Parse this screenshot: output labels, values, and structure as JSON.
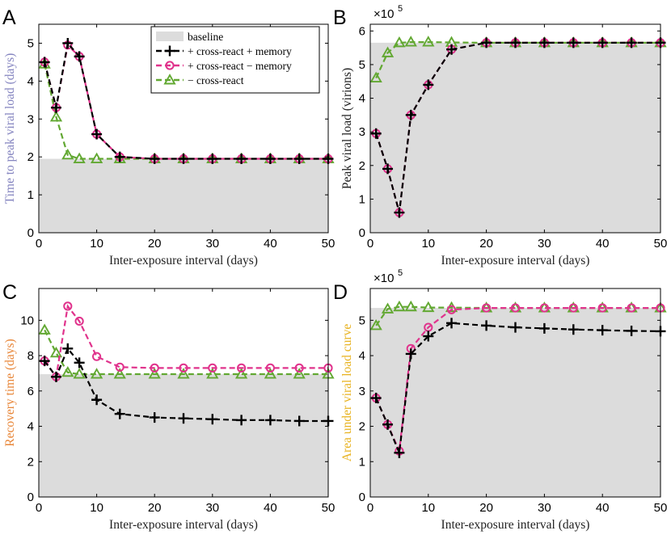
{
  "colors": {
    "memory": "#000000",
    "no_memory": "#e0338c",
    "no_cross": "#62a832",
    "baseline": "#dcdcdc",
    "ylabel_A": "#8585c0",
    "ylabel_C": "#e8873a",
    "ylabel_D": "#e8b321"
  },
  "legend": {
    "baseline": "baseline",
    "memory": "+ cross-react + memory",
    "no_memory": "+ cross-react − memory",
    "no_cross": "− cross-react"
  },
  "chart_data": [
    {
      "panel": "A",
      "type": "line",
      "xlabel": "Inter-exposure interval (days)",
      "ylabel": "Time to peak viral load (days)",
      "xlim": [
        0,
        50
      ],
      "ylim": [
        0,
        5.5
      ],
      "xticks": [
        0,
        10,
        20,
        30,
        40,
        50
      ],
      "yticks": [
        0,
        1,
        2,
        3,
        4,
        5
      ],
      "baseline": 1.95,
      "series": [
        {
          "name": "+ cross-react + memory",
          "key": "memory",
          "marker": "plus",
          "x": [
            1,
            3,
            5,
            7,
            10,
            14,
            20,
            25,
            30,
            35,
            40,
            45,
            50
          ],
          "y": [
            4.5,
            3.3,
            5.0,
            4.65,
            2.6,
            2.0,
            1.95,
            1.95,
            1.95,
            1.95,
            1.95,
            1.95,
            1.95
          ]
        },
        {
          "name": "+ cross-react − memory",
          "key": "no_memory",
          "marker": "circle",
          "x": [
            1,
            3,
            5,
            7,
            10,
            14,
            20,
            25,
            30,
            35,
            40,
            45,
            50
          ],
          "y": [
            4.5,
            3.3,
            4.95,
            4.65,
            2.6,
            2.0,
            1.95,
            1.95,
            1.95,
            1.95,
            1.95,
            1.95,
            1.95
          ]
        },
        {
          "name": "− cross-react",
          "key": "no_cross",
          "marker": "triangle",
          "x": [
            1,
            3,
            5,
            7,
            10,
            14,
            20,
            25,
            30,
            35,
            40,
            45,
            50
          ],
          "y": [
            4.45,
            3.05,
            2.05,
            1.95,
            1.95,
            1.95,
            1.95,
            1.95,
            1.95,
            1.95,
            1.95,
            1.95,
            1.95
          ]
        }
      ]
    },
    {
      "panel": "B",
      "type": "line",
      "xlabel": "Inter-exposure interval (days)",
      "ylabel": "Peak viral load (virions)",
      "scale_base": "×10",
      "scale_exp": "5",
      "xlim": [
        0,
        50
      ],
      "ylim": [
        0,
        6.2
      ],
      "xticks": [
        0,
        10,
        20,
        30,
        40,
        50
      ],
      "yticks": [
        0,
        1,
        2,
        3,
        4,
        5,
        6
      ],
      "baseline": 5.65,
      "series": [
        {
          "name": "+ cross-react + memory",
          "key": "memory",
          "marker": "plus",
          "x": [
            1,
            3,
            5,
            7,
            10,
            14,
            20,
            25,
            30,
            35,
            40,
            45,
            50
          ],
          "y": [
            2.95,
            1.9,
            0.6,
            3.5,
            4.4,
            5.45,
            5.65,
            5.65,
            5.65,
            5.65,
            5.65,
            5.65,
            5.65
          ]
        },
        {
          "name": "+ cross-react − memory",
          "key": "no_memory",
          "marker": "circle",
          "x": [
            1,
            3,
            5,
            7,
            10,
            14,
            20,
            25,
            30,
            35,
            40,
            45,
            50
          ],
          "y": [
            2.95,
            1.9,
            0.6,
            3.5,
            4.4,
            5.45,
            5.65,
            5.65,
            5.65,
            5.65,
            5.65,
            5.65,
            5.65
          ]
        },
        {
          "name": "− cross-react",
          "key": "no_cross",
          "marker": "triangle",
          "x": [
            1,
            3,
            5,
            7,
            10,
            14,
            20,
            25,
            30,
            35,
            40,
            45,
            50
          ],
          "y": [
            4.6,
            5.35,
            5.65,
            5.67,
            5.67,
            5.66,
            5.65,
            5.65,
            5.65,
            5.65,
            5.65,
            5.65,
            5.65
          ]
        }
      ]
    },
    {
      "panel": "C",
      "type": "line",
      "xlabel": "Inter-exposure interval (days)",
      "ylabel": "Recovery time (days)",
      "xlim": [
        0,
        50
      ],
      "ylim": [
        0,
        11.8
      ],
      "xticks": [
        0,
        10,
        20,
        30,
        40,
        50
      ],
      "yticks": [
        0,
        2,
        4,
        6,
        8,
        10
      ],
      "baseline": 6.95,
      "series": [
        {
          "name": "+ cross-react + memory",
          "key": "memory",
          "marker": "plus",
          "x": [
            1,
            3,
            5,
            7,
            10,
            14,
            20,
            25,
            30,
            35,
            40,
            45,
            50
          ],
          "y": [
            7.7,
            6.8,
            8.4,
            7.6,
            5.5,
            4.7,
            4.5,
            4.45,
            4.4,
            4.35,
            4.35,
            4.3,
            4.3
          ]
        },
        {
          "name": "+ cross-react − memory",
          "key": "no_memory",
          "marker": "circle",
          "x": [
            1,
            3,
            5,
            7,
            10,
            14,
            20,
            25,
            30,
            35,
            40,
            45,
            50
          ],
          "y": [
            7.7,
            6.8,
            10.8,
            9.95,
            7.95,
            7.35,
            7.3,
            7.3,
            7.3,
            7.3,
            7.3,
            7.3,
            7.3
          ]
        },
        {
          "name": "− cross-react",
          "key": "no_cross",
          "marker": "triangle",
          "x": [
            1,
            3,
            5,
            7,
            10,
            14,
            20,
            25,
            30,
            35,
            40,
            45,
            50
          ],
          "y": [
            9.45,
            8.15,
            7.05,
            6.95,
            6.95,
            6.95,
            6.95,
            6.95,
            6.95,
            6.95,
            6.95,
            6.95,
            6.95
          ]
        }
      ]
    },
    {
      "panel": "D",
      "type": "line",
      "xlabel": "Inter-exposure interval (days)",
      "ylabel": "Area under viral load curve",
      "scale_base": "×10",
      "scale_exp": "5",
      "xlim": [
        0,
        50
      ],
      "ylim": [
        0,
        5.9
      ],
      "xticks": [
        0,
        10,
        20,
        30,
        40,
        50
      ],
      "yticks": [
        0,
        1,
        2,
        3,
        4,
        5
      ],
      "baseline": 5.35,
      "series": [
        {
          "name": "+ cross-react + memory",
          "key": "memory",
          "marker": "plus",
          "x": [
            1,
            3,
            5,
            7,
            10,
            14,
            20,
            25,
            30,
            35,
            40,
            45,
            50
          ],
          "y": [
            2.8,
            2.05,
            1.25,
            4.05,
            4.55,
            4.92,
            4.85,
            4.8,
            4.77,
            4.74,
            4.72,
            4.7,
            4.69
          ]
        },
        {
          "name": "+ cross-react − memory",
          "key": "no_memory",
          "marker": "circle",
          "x": [
            1,
            3,
            5,
            7,
            10,
            14,
            20,
            25,
            30,
            35,
            40,
            45,
            50
          ],
          "y": [
            2.8,
            2.05,
            1.3,
            4.2,
            4.8,
            5.3,
            5.35,
            5.35,
            5.35,
            5.35,
            5.35,
            5.35,
            5.35
          ]
        },
        {
          "name": "− cross-react",
          "key": "no_cross",
          "marker": "triangle",
          "x": [
            1,
            3,
            5,
            7,
            10,
            14,
            20,
            25,
            30,
            35,
            40,
            45,
            50
          ],
          "y": [
            4.85,
            5.32,
            5.38,
            5.38,
            5.36,
            5.36,
            5.35,
            5.35,
            5.35,
            5.35,
            5.35,
            5.35,
            5.35
          ]
        }
      ]
    }
  ]
}
